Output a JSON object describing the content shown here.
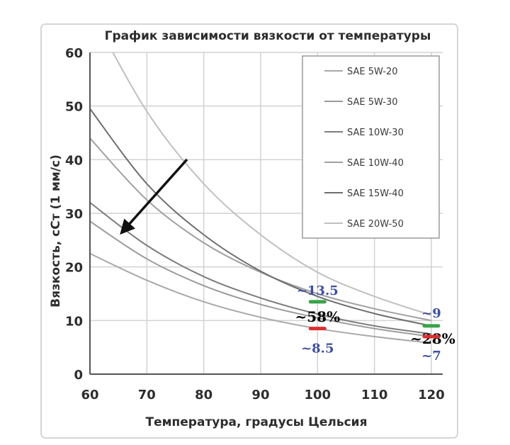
{
  "chart_data": {
    "type": "line",
    "title": "График зависимости вязкости от температуры",
    "xlabel": "Температура, градусы Цельсия",
    "ylabel": "Вязкость, сСт (1 мм/с)",
    "xlim": [
      60,
      122
    ],
    "ylim": [
      0,
      60
    ],
    "x_ticks": [
      "60",
      "70",
      "80",
      "90",
      "100",
      "110",
      "120"
    ],
    "y_ticks": [
      "0",
      "10",
      "20",
      "30",
      "40",
      "50",
      "60"
    ],
    "grid": true,
    "legend_position": "top-right",
    "x": [
      60,
      70,
      80,
      90,
      100,
      110,
      120
    ],
    "series": [
      {
        "name": "SAE 5W-20",
        "values": [
          22.5,
          17.5,
          13.5,
          10.6,
          8.5,
          7.0,
          5.8
        ],
        "color": "#a8a8a8"
      },
      {
        "name": "SAE 5W-30",
        "values": [
          28.5,
          21.5,
          16.5,
          13.0,
          10.5,
          8.5,
          7.0
        ],
        "color": "#9a9a9a"
      },
      {
        "name": "SAE 10W-30",
        "values": [
          32.0,
          24.0,
          18.2,
          14.2,
          11.2,
          9.0,
          7.5
        ],
        "color": "#7d7d7d"
      },
      {
        "name": "SAE 10W-40",
        "values": [
          44.0,
          32.5,
          24.5,
          19.0,
          15.0,
          12.2,
          10.0
        ],
        "color": "#a0a0a0"
      },
      {
        "name": "SAE 15W-40",
        "values": [
          49.5,
          35.5,
          26.0,
          19.2,
          14.5,
          11.3,
          9.0
        ],
        "color": "#6e6e6e"
      },
      {
        "name": "SAE 20W-50",
        "values": [
          68.0,
          49.0,
          35.5,
          26.0,
          19.0,
          14.5,
          11.0
        ],
        "color": "#c0c0c0"
      }
    ],
    "annotations": [
      {
        "text": "~13.5",
        "x": 100,
        "y": 13.5,
        "color": "#3e4ea0",
        "marker_color": "#3aa34a"
      },
      {
        "text": "~58%",
        "x": 100,
        "y": 10.7,
        "color": "#000000"
      },
      {
        "text": "~8.5",
        "x": 100,
        "y": 8.5,
        "color": "#3e4ea0",
        "marker_color": "#d93030"
      },
      {
        "text": "~9",
        "x": 120,
        "y": 9,
        "color": "#3e4ea0",
        "marker_color": "#3aa34a"
      },
      {
        "text": "~28%",
        "x": 120,
        "y": 7.4,
        "color": "#000000"
      },
      {
        "text": "~7",
        "x": 120,
        "y": 7,
        "color": "#3e4ea0",
        "marker_color": "#d93030"
      }
    ]
  }
}
